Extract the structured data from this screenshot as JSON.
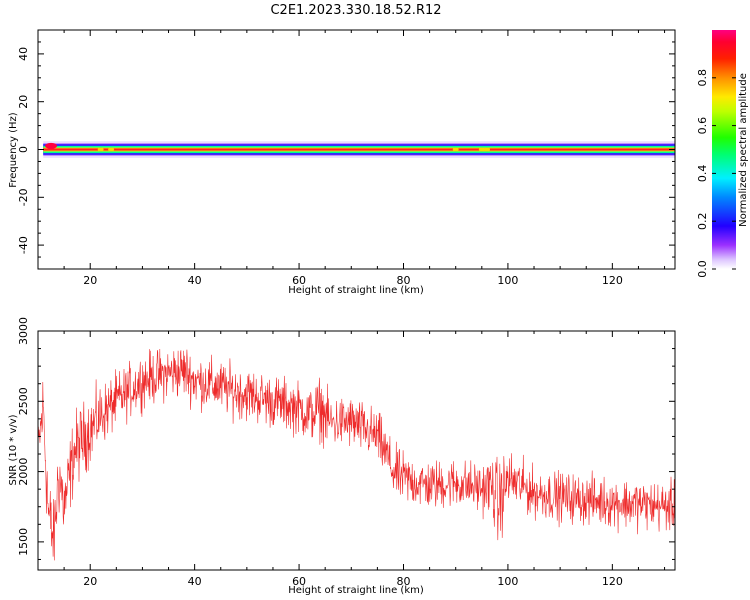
{
  "figure": {
    "title": "C2E1.2023.330.18.52.R12"
  },
  "chart_data": [
    {
      "type": "heatmap",
      "xlabel": "Height of straight line (km)",
      "ylabel": "Frequency (Hz)",
      "xlim": [
        10,
        132
      ],
      "ylim": [
        -50,
        50
      ],
      "xticks": [
        20,
        40,
        60,
        80,
        100,
        120
      ],
      "yticks": [
        -40,
        -20,
        0,
        20,
        40
      ],
      "band": {
        "center_hz": 0,
        "core_half_width_hz": 1.5,
        "halo_half_width_hz": 3.5,
        "x_start": 11,
        "x_end": 132,
        "peak_frequency_start_hz": 1.5,
        "peak_frequency_end_hz": 0
      },
      "colorbar": {
        "label": "Normalized spectral amplitude",
        "range": [
          0,
          1
        ],
        "ticks": [
          0.0,
          0.2,
          0.4,
          0.6,
          0.8
        ],
        "tick_labels": [
          "0.0",
          "0.2",
          "0.4",
          "0.6",
          "0.8"
        ],
        "colormap": "gist_rainbow"
      }
    },
    {
      "type": "line",
      "xlabel": "Height of straight line (km)",
      "ylabel": "SNR (10 * v/v)",
      "xlim": [
        10,
        132
      ],
      "ylim": [
        1300,
        3000
      ],
      "xticks": [
        20,
        40,
        60,
        80,
        100,
        120
      ],
      "yticks": [
        1500,
        2000,
        2500,
        3000
      ],
      "color": "#ee2b2b",
      "series": [
        {
          "x": [
            10,
            11,
            12,
            13,
            14,
            15,
            17,
            20,
            22,
            25,
            30,
            35,
            38,
            40,
            45,
            50,
            55,
            60,
            62,
            64,
            66,
            70,
            75,
            77,
            78,
            80,
            85,
            90,
            95,
            97,
            98,
            100,
            105,
            110,
            115,
            120,
            125,
            130,
            132
          ],
          "y": [
            2150,
            2450,
            1700,
            1500,
            2000,
            1750,
            2150,
            2300,
            2400,
            2500,
            2650,
            2700,
            2720,
            2650,
            2600,
            2550,
            2500,
            2450,
            2400,
            2450,
            2350,
            2350,
            2250,
            2100,
            2000,
            1950,
            1900,
            1920,
            1880,
            1900,
            1750,
            1950,
            1850,
            1820,
            1800,
            1780,
            1770,
            1750,
            1750
          ],
          "spread": [
            150,
            300,
            300,
            250,
            300,
            250,
            250,
            220,
            200,
            180,
            170,
            170,
            180,
            170,
            170,
            170,
            170,
            170,
            180,
            200,
            170,
            170,
            170,
            170,
            170,
            170,
            160,
            160,
            160,
            200,
            300,
            180,
            160,
            160,
            160,
            160,
            160,
            160,
            160
          ]
        }
      ]
    }
  ]
}
